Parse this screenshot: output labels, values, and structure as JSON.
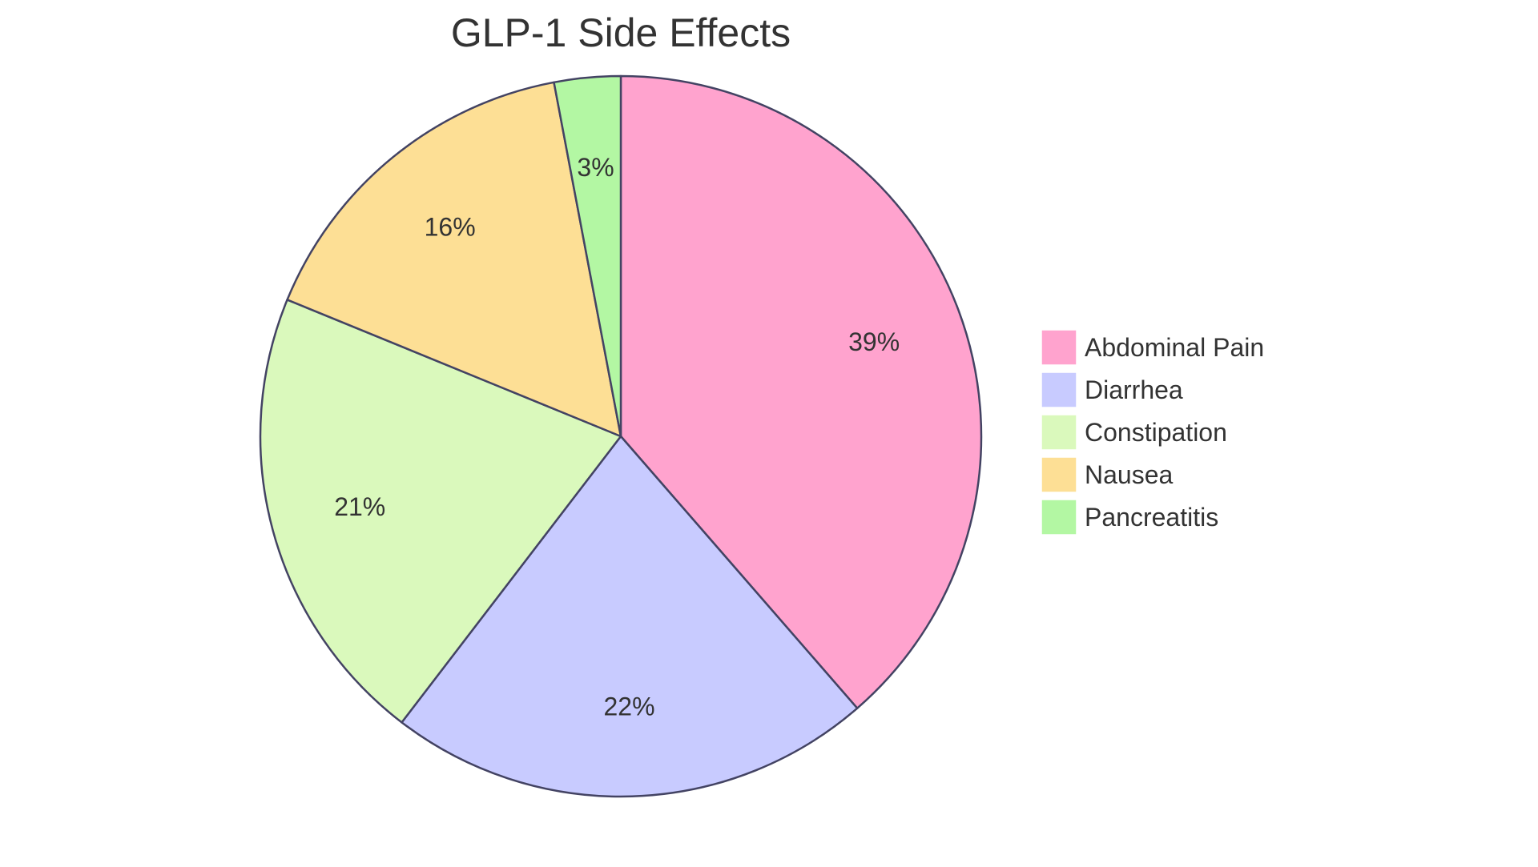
{
  "chart_data": {
    "type": "pie",
    "title": "GLP-1 Side Effects",
    "slices": [
      {
        "label": "Abdominal Pain",
        "value": 39,
        "display": "39%",
        "color": "#FFA3CE"
      },
      {
        "label": "Diarrhea",
        "value": 22,
        "display": "22%",
        "color": "#C8CBFF"
      },
      {
        "label": "Constipation",
        "value": 21,
        "display": "21%",
        "color": "#DAF9BC"
      },
      {
        "label": "Nausea",
        "value": 16,
        "display": "16%",
        "color": "#FDDF95"
      },
      {
        "label": "Pancreatitis",
        "value": 3,
        "display": "3%",
        "color": "#B3F7A3"
      }
    ],
    "legend_position": "right",
    "stroke_color": "#434363"
  }
}
